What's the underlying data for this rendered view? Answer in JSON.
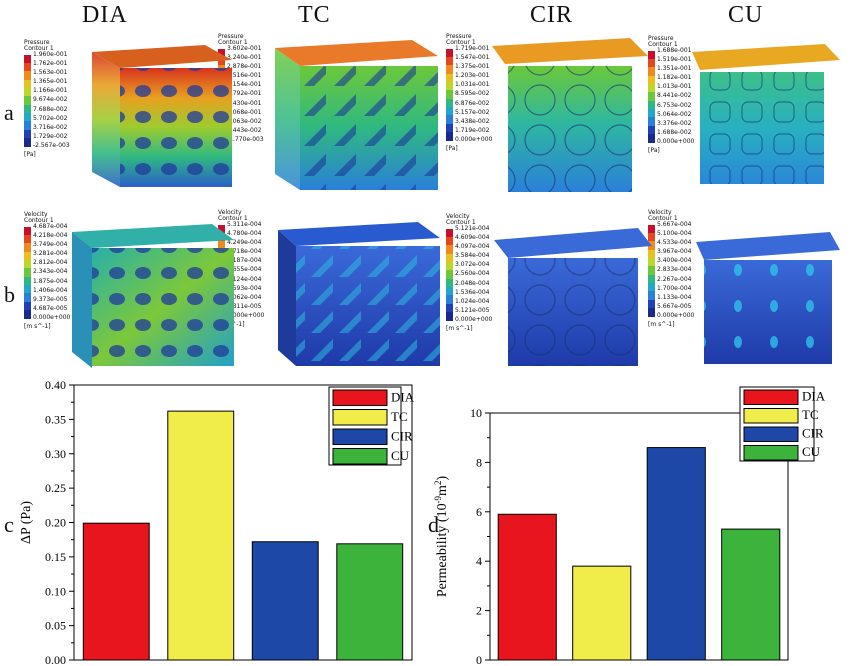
{
  "columns": [
    "DIA",
    "TC",
    "CIR",
    "CU"
  ],
  "row_labels": [
    "a",
    "b"
  ],
  "panel_labels": [
    "c",
    "d"
  ],
  "pressure_contours": [
    {
      "title": "Pressure\nContour 1",
      "unit": "[Pa]",
      "ticks": [
        "1.960e-001",
        "1.762e-001",
        "1.563e-001",
        "1.365e-001",
        "1.166e-001",
        "9.674e-002",
        "7.688e-002",
        "5.702e-002",
        "3.716e-002",
        "1.729e-002",
        "-2.567e-003"
      ]
    },
    {
      "title": "Pressure\nContour 1",
      "unit": "[Pa]",
      "ticks": [
        "3.602e-001",
        "3.240e-001",
        "2.878e-001",
        "2.516e-001",
        "2.154e-001",
        "1.792e-001",
        "1.430e-001",
        "1.068e-001",
        "7.063e-002",
        "3.443e-002",
        "-1.770e-003"
      ]
    },
    {
      "title": "Pressure\nContour 1",
      "unit": "[Pa]",
      "ticks": [
        "1.719e-001",
        "1.547e-001",
        "1.375e-001",
        "1.203e-001",
        "1.031e-001",
        "8.595e-002",
        "6.876e-002",
        "5.157e-002",
        "3.438e-002",
        "1.719e-002",
        "0.000e+000"
      ]
    },
    {
      "title": "Pressure\nContour 1",
      "unit": "[Pa]",
      "ticks": [
        "1.688e-001",
        "1.519e-001",
        "1.351e-001",
        "1.182e-001",
        "1.013e-001",
        "8.441e-002",
        "6.753e-002",
        "5.064e-002",
        "3.376e-002",
        "1.688e-002",
        "0.000e+000"
      ]
    }
  ],
  "velocity_contours": [
    {
      "title": "Velocity\nContour 1",
      "unit": "[m s^-1]",
      "ticks": [
        "4.687e-004",
        "4.218e-004",
        "3.749e-004",
        "3.281e-004",
        "2.812e-004",
        "2.343e-004",
        "1.875e-004",
        "1.406e-004",
        "9.373e-005",
        "4.687e-005",
        "0.000e+000"
      ]
    },
    {
      "title": "Velocity\nContour 1",
      "unit": "[m s^-1]",
      "ticks": [
        "5.311e-004",
        "4.780e-004",
        "4.249e-004",
        "3.718e-004",
        "3.187e-004",
        "2.655e-004",
        "2.124e-004",
        "1.593e-004",
        "1.062e-004",
        "5.311e-005",
        "0.000e+000"
      ]
    },
    {
      "title": "Velocity\nContour 1",
      "unit": "[m s^-1]",
      "ticks": [
        "5.121e-004",
        "4.609e-004",
        "4.097e-004",
        "3.584e-004",
        "3.072e-004",
        "2.560e-004",
        "2.048e-004",
        "1.536e-004",
        "1.024e-004",
        "5.121e-005",
        "0.000e+000"
      ]
    },
    {
      "title": "Velocity\nContour 1",
      "unit": "[m s^-1]",
      "ticks": [
        "5.667e-004",
        "5.100e-004",
        "4.533e-004",
        "3.967e-004",
        "3.400e-004",
        "2.833e-004",
        "2.267e-004",
        "1.700e-004",
        "1.133e-004",
        "5.667e-005",
        "0.000e+000"
      ]
    }
  ],
  "colormap": [
    "#c8102e",
    "#e8461c",
    "#f08a1e",
    "#e8c020",
    "#bcd62a",
    "#6cc83a",
    "#2fb882",
    "#22a8c8",
    "#2a80d8",
    "#2040b8",
    "#1a2a8a"
  ],
  "chart_data": [
    {
      "type": "bar",
      "panel": "c",
      "categories": [
        "DIA",
        "TC",
        "CIR",
        "CU"
      ],
      "values": [
        0.199,
        0.362,
        0.172,
        0.169
      ],
      "ylabel": "ΔP (Pa)",
      "ylim": [
        0,
        0.4
      ],
      "yticks": [
        "0.00",
        "0.05",
        "0.10",
        "0.15",
        "0.20",
        "0.25",
        "0.30",
        "0.35",
        "0.40"
      ],
      "legend": [
        "DIA",
        "TC",
        "CIR",
        "CU"
      ],
      "legend_position": "top-right",
      "grid": false
    },
    {
      "type": "bar",
      "panel": "d",
      "categories": [
        "DIA",
        "TC",
        "CIR",
        "CU"
      ],
      "values": [
        5.9,
        3.8,
        8.6,
        5.3
      ],
      "ylabel": "Permeability (10^-9 m^2)",
      "ylim": [
        0,
        10
      ],
      "yticks": [
        "0",
        "2",
        "4",
        "6",
        "8",
        "10"
      ],
      "legend": [
        "DIA",
        "TC",
        "CIR",
        "CU"
      ],
      "legend_position": "top-right",
      "grid": false
    }
  ],
  "series_colors": [
    "#e8141e",
    "#f0ec4a",
    "#1e48a8",
    "#3cb43c"
  ]
}
